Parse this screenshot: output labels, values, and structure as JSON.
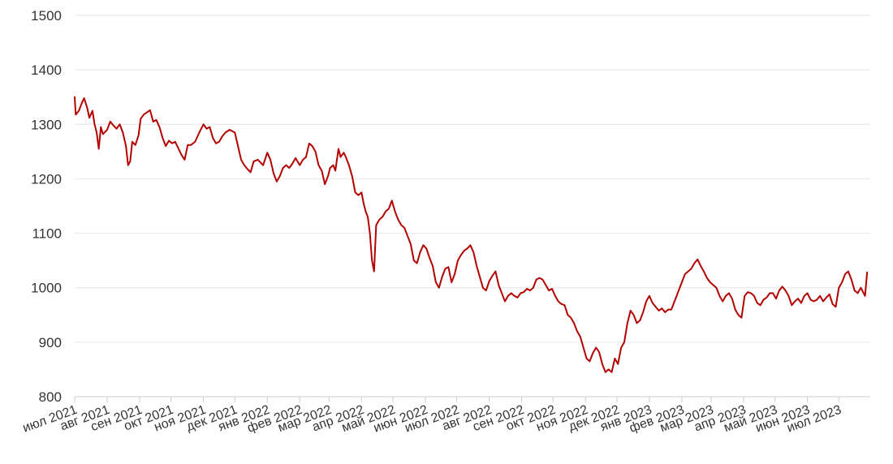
{
  "chart_data": {
    "type": "line",
    "title": "",
    "xlabel": "",
    "ylabel": "",
    "ylim": [
      800,
      1500
    ],
    "xlim": [
      "2021-07-01",
      "2023-07-31"
    ],
    "grid": true,
    "legend": "none",
    "colors": {
      "line": "#b30000",
      "grid": "#e6e6e6",
      "axis": "#cccccc",
      "text": "#333333"
    },
    "y_ticks": [
      "800",
      "900",
      "1000",
      "1100",
      "1200",
      "1300",
      "1400",
      "1500"
    ],
    "x_ticks": [
      {
        "date": "2021-07-01",
        "label": "июл 2021"
      },
      {
        "date": "2021-08-01",
        "label": "авг 2021"
      },
      {
        "date": "2021-09-01",
        "label": "сен 2021"
      },
      {
        "date": "2021-10-01",
        "label": "окт 2021"
      },
      {
        "date": "2021-11-01",
        "label": "ноя 2021"
      },
      {
        "date": "2021-12-01",
        "label": "дек 2021"
      },
      {
        "date": "2022-01-01",
        "label": "янв 2022"
      },
      {
        "date": "2022-02-01",
        "label": "фев 2022"
      },
      {
        "date": "2022-03-01",
        "label": "мар 2022"
      },
      {
        "date": "2022-04-01",
        "label": "апр 2022"
      },
      {
        "date": "2022-05-01",
        "label": "май 2022"
      },
      {
        "date": "2022-06-01",
        "label": "июн 2022"
      },
      {
        "date": "2022-07-01",
        "label": "июл 2022"
      },
      {
        "date": "2022-08-01",
        "label": "авг 2022"
      },
      {
        "date": "2022-09-01",
        "label": "сен 2022"
      },
      {
        "date": "2022-10-01",
        "label": "окт 2022"
      },
      {
        "date": "2022-11-01",
        "label": "ноя 2022"
      },
      {
        "date": "2022-12-01",
        "label": "дек 2022"
      },
      {
        "date": "2023-01-01",
        "label": "янв 2023"
      },
      {
        "date": "2023-02-01",
        "label": "фев 2023"
      },
      {
        "date": "2023-03-01",
        "label": "мар 2023"
      },
      {
        "date": "2023-04-01",
        "label": "апр 2023"
      },
      {
        "date": "2023-05-01",
        "label": "май 2023"
      },
      {
        "date": "2023-06-01",
        "label": "июн 2023"
      },
      {
        "date": "2023-07-01",
        "label": "июл 2023"
      }
    ],
    "series": [
      {
        "name": "",
        "x": [
          "2021-07-01",
          "2021-07-02",
          "2021-07-05",
          "2021-07-08",
          "2021-07-10",
          "2021-07-13",
          "2021-07-15",
          "2021-07-18",
          "2021-07-20",
          "2021-07-22",
          "2021-07-24",
          "2021-07-26",
          "2021-07-28",
          "2021-08-01",
          "2021-08-04",
          "2021-08-07",
          "2021-08-10",
          "2021-08-13",
          "2021-08-16",
          "2021-08-19",
          "2021-08-21",
          "2021-08-23",
          "2021-08-25",
          "2021-08-28",
          "2021-08-31",
          "2021-09-02",
          "2021-09-05",
          "2021-09-08",
          "2021-09-11",
          "2021-09-14",
          "2021-09-17",
          "2021-09-20",
          "2021-09-23",
          "2021-09-26",
          "2021-09-29",
          "2021-10-02",
          "2021-10-05",
          "2021-10-08",
          "2021-10-11",
          "2021-10-14",
          "2021-10-17",
          "2021-10-20",
          "2021-10-24",
          "2021-10-28",
          "2021-11-01",
          "2021-11-04",
          "2021-11-07",
          "2021-11-10",
          "2021-11-13",
          "2021-11-16",
          "2021-11-19",
          "2021-11-22",
          "2021-11-26",
          "2021-12-01",
          "2021-12-04",
          "2021-12-07",
          "2021-12-10",
          "2021-12-13",
          "2021-12-16",
          "2021-12-19",
          "2021-12-23",
          "2021-12-28",
          "2022-01-01",
          "2022-01-04",
          "2022-01-07",
          "2022-01-10",
          "2022-01-13",
          "2022-01-16",
          "2022-01-19",
          "2022-01-22",
          "2022-01-25",
          "2022-01-28",
          "2022-02-01",
          "2022-02-04",
          "2022-02-07",
          "2022-02-10",
          "2022-02-13",
          "2022-02-16",
          "2022-02-19",
          "2022-02-22",
          "2022-02-25",
          "2022-02-28",
          "2022-03-02",
          "2022-03-05",
          "2022-03-07",
          "2022-03-10",
          "2022-03-12",
          "2022-03-15",
          "2022-03-17",
          "2022-03-20",
          "2022-03-23",
          "2022-03-26",
          "2022-03-29",
          "2022-04-01",
          "2022-04-03",
          "2022-04-05",
          "2022-04-07",
          "2022-04-09",
          "2022-04-11",
          "2022-04-13",
          "2022-04-15",
          "2022-04-18",
          "2022-04-21",
          "2022-04-24",
          "2022-04-27",
          "2022-04-30",
          "2022-05-03",
          "2022-05-06",
          "2022-05-09",
          "2022-05-12",
          "2022-05-15",
          "2022-05-18",
          "2022-05-21",
          "2022-05-24",
          "2022-05-27",
          "2022-05-30",
          "2022-06-02",
          "2022-06-05",
          "2022-06-08",
          "2022-06-11",
          "2022-06-14",
          "2022-06-17",
          "2022-06-20",
          "2022-06-23",
          "2022-06-26",
          "2022-06-29",
          "2022-07-02",
          "2022-07-05",
          "2022-07-08",
          "2022-07-11",
          "2022-07-14",
          "2022-07-17",
          "2022-07-20",
          "2022-07-23",
          "2022-07-26",
          "2022-07-29",
          "2022-08-01",
          "2022-08-04",
          "2022-08-07",
          "2022-08-10",
          "2022-08-13",
          "2022-08-16",
          "2022-08-19",
          "2022-08-22",
          "2022-08-25",
          "2022-08-28",
          "2022-08-31",
          "2022-09-03",
          "2022-09-06",
          "2022-09-09",
          "2022-09-12",
          "2022-09-15",
          "2022-09-18",
          "2022-09-21",
          "2022-09-24",
          "2022-09-27",
          "2022-09-30",
          "2022-10-03",
          "2022-10-06",
          "2022-10-09",
          "2022-10-12",
          "2022-10-15",
          "2022-10-18",
          "2022-10-21",
          "2022-10-24",
          "2022-10-27",
          "2022-10-30",
          "2022-11-02",
          "2022-11-05",
          "2022-11-08",
          "2022-11-11",
          "2022-11-14",
          "2022-11-17",
          "2022-11-20",
          "2022-11-23",
          "2022-11-26",
          "2022-11-29",
          "2022-12-02",
          "2022-12-05",
          "2022-12-08",
          "2022-12-11",
          "2022-12-14",
          "2022-12-17",
          "2022-12-20",
          "2022-12-23",
          "2022-12-26",
          "2022-12-29",
          "2023-01-01",
          "2023-01-04",
          "2023-01-07",
          "2023-01-10",
          "2023-01-13",
          "2023-01-16",
          "2023-01-19",
          "2023-01-22",
          "2023-01-25",
          "2023-01-28",
          "2023-02-01",
          "2023-02-04",
          "2023-02-07",
          "2023-02-10",
          "2023-02-13",
          "2023-02-16",
          "2023-02-19",
          "2023-02-22",
          "2023-02-25",
          "2023-02-28",
          "2023-03-03",
          "2023-03-06",
          "2023-03-09",
          "2023-03-12",
          "2023-03-15",
          "2023-03-18",
          "2023-03-21",
          "2023-03-24",
          "2023-03-27",
          "2023-03-30",
          "2023-04-02",
          "2023-04-05",
          "2023-04-08",
          "2023-04-11",
          "2023-04-14",
          "2023-04-17",
          "2023-04-20",
          "2023-04-23",
          "2023-04-26",
          "2023-04-29",
          "2023-05-02",
          "2023-05-05",
          "2023-05-08",
          "2023-05-11",
          "2023-05-14",
          "2023-05-17",
          "2023-05-20",
          "2023-05-23",
          "2023-05-26",
          "2023-05-29",
          "2023-06-01",
          "2023-06-04",
          "2023-06-07",
          "2023-06-10",
          "2023-06-13",
          "2023-06-16",
          "2023-06-19",
          "2023-06-22",
          "2023-06-25",
          "2023-06-28",
          "2023-07-01",
          "2023-07-04",
          "2023-07-07",
          "2023-07-10",
          "2023-07-13",
          "2023-07-16",
          "2023-07-19",
          "2023-07-22",
          "2023-07-26",
          "2023-07-28"
        ],
        "y": [
          1350,
          1318,
          1325,
          1340,
          1348,
          1330,
          1312,
          1325,
          1300,
          1285,
          1255,
          1295,
          1282,
          1290,
          1305,
          1298,
          1292,
          1300,
          1285,
          1260,
          1225,
          1232,
          1268,
          1262,
          1280,
          1310,
          1318,
          1322,
          1326,
          1305,
          1308,
          1295,
          1275,
          1260,
          1270,
          1265,
          1268,
          1256,
          1244,
          1235,
          1262,
          1262,
          1268,
          1285,
          1300,
          1292,
          1295,
          1275,
          1265,
          1268,
          1278,
          1285,
          1290,
          1285,
          1260,
          1235,
          1225,
          1218,
          1212,
          1232,
          1235,
          1225,
          1248,
          1235,
          1210,
          1195,
          1205,
          1220,
          1225,
          1220,
          1228,
          1238,
          1225,
          1235,
          1240,
          1265,
          1260,
          1250,
          1225,
          1215,
          1190,
          1205,
          1220,
          1225,
          1215,
          1255,
          1240,
          1248,
          1240,
          1225,
          1205,
          1175,
          1170,
          1175,
          1155,
          1140,
          1130,
          1100,
          1050,
          1030,
          1115,
          1125,
          1130,
          1140,
          1145,
          1160,
          1140,
          1125,
          1115,
          1110,
          1095,
          1080,
          1050,
          1045,
          1065,
          1078,
          1072,
          1055,
          1040,
          1010,
          1000,
          1020,
          1035,
          1038,
          1010,
          1025,
          1050,
          1060,
          1068,
          1072,
          1078,
          1065,
          1040,
          1020,
          1000,
          995,
          1012,
          1022,
          1030,
          1005,
          990,
          975,
          985,
          990,
          985,
          982,
          990,
          992,
          998,
          995,
          1000,
          1015,
          1018,
          1015,
          1005,
          995,
          998,
          985,
          975,
          970,
          968,
          950,
          945,
          935,
          920,
          910,
          890,
          870,
          865,
          880,
          890,
          882,
          860,
          845,
          850,
          845,
          870,
          860,
          890,
          900,
          935,
          958,
          950,
          935,
          940,
          955,
          975,
          985,
          972,
          965,
          958,
          962,
          955,
          960,
          960,
          975,
          990,
          1010,
          1025,
          1030,
          1035,
          1045,
          1052,
          1040,
          1030,
          1018,
          1010,
          1005,
          1000,
          985,
          975,
          985,
          990,
          980,
          960,
          950,
          945,
          985,
          992,
          990,
          985,
          972,
          968,
          978,
          982,
          990,
          990,
          980,
          995,
          1002,
          995,
          985,
          968,
          975,
          980,
          972,
          985,
          990,
          978,
          975,
          978,
          985,
          975,
          982,
          988,
          970,
          965,
          1000,
          1010,
          1025,
          1030,
          1015,
          995,
          990,
          1000,
          985,
          1028
        ]
      }
    ]
  }
}
